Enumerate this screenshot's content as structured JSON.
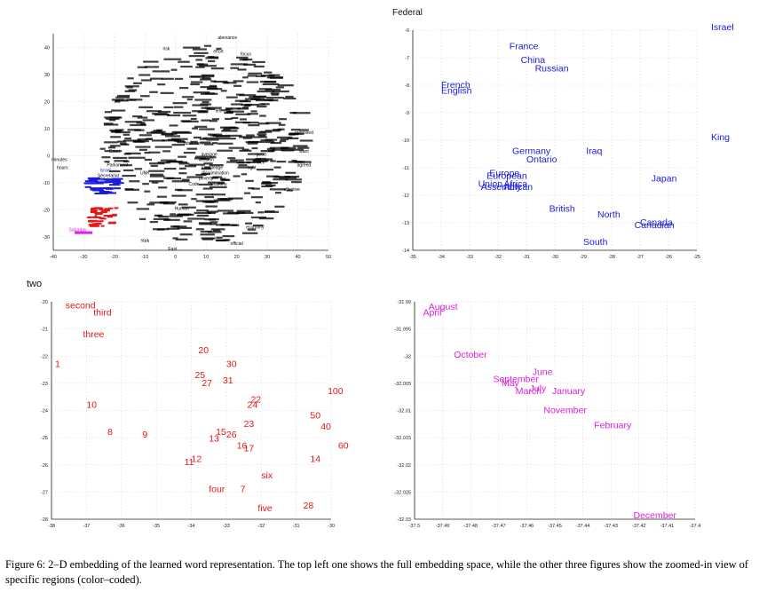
{
  "caption": "Figure 6: 2–D embedding of the learned word representation. The top left one shows the full embedding space, while the other three figures show the zoomed-in view of specific regions (color–coded).",
  "colors": {
    "black": "#000000",
    "blue": "#1a1adf",
    "red": "#e01818",
    "magenta": "#e020e0",
    "grid": "#d8d8d8"
  },
  "chart_data": [
    {
      "type": "scatter",
      "xlim": [
        -40,
        50
      ],
      "ylim": [
        -35,
        45
      ],
      "xticks": [
        -40,
        -30,
        -20,
        -10,
        0,
        10,
        20,
        30,
        40,
        50
      ],
      "yticks": [
        -30,
        -20,
        -10,
        0,
        10,
        20,
        30,
        40
      ],
      "grid": true,
      "words": [
        {
          "t": "abexance",
          "x": 17,
          "y": 43,
          "c": "black"
        },
        {
          "t": "risk",
          "x": -3,
          "y": 39,
          "c": "black"
        },
        {
          "t": "focus",
          "x": 23,
          "y": 37,
          "c": "black"
        },
        {
          "t": "effort",
          "x": 14,
          "y": 38,
          "c": "black"
        },
        {
          "t": "proposed",
          "x": 42,
          "y": 8,
          "c": "black"
        },
        {
          "t": "want",
          "x": 42,
          "y": 1,
          "c": "black"
        },
        {
          "t": "agreed",
          "x": 42,
          "y": -4,
          "c": "black"
        },
        {
          "t": "left",
          "x": 14,
          "y": 16,
          "c": "black"
        },
        {
          "t": "average",
          "x": 11,
          "y": 0,
          "c": "black"
        },
        {
          "t": "location",
          "x": 10,
          "y": -2,
          "c": "black"
        },
        {
          "t": "knowledge",
          "x": 12,
          "y": -5,
          "c": "black"
        },
        {
          "t": "discrimination",
          "x": 13,
          "y": -7,
          "c": "black"
        },
        {
          "t": "poverty",
          "x": 10,
          "y": -9,
          "c": "black"
        },
        {
          "t": "table crew",
          "x": 6,
          "y": 4,
          "c": "black"
        },
        {
          "t": "Parliament",
          "x": -19,
          "y": -4,
          "c": "black"
        },
        {
          "t": "Court",
          "x": -20,
          "y": 1,
          "c": "black"
        },
        {
          "t": "UNK",
          "x": -10,
          "y": -7,
          "c": "black"
        },
        {
          "t": "Code",
          "x": 6,
          "y": -11,
          "c": "black"
        },
        {
          "t": "relations",
          "x": 14,
          "y": -11,
          "c": "black"
        },
        {
          "t": "minutes",
          "x": -38,
          "y": -2,
          "c": "black"
        },
        {
          "t": "hours",
          "x": -37,
          "y": -5,
          "c": "black"
        },
        {
          "t": "effective",
          "x": 38,
          "y": -13,
          "c": "black"
        },
        {
          "t": "Human",
          "x": 2,
          "y": -20,
          "c": "black"
        },
        {
          "t": "York",
          "x": -10,
          "y": -32,
          "c": "black"
        },
        {
          "t": "East",
          "x": -1,
          "y": -35,
          "c": "black"
        },
        {
          "t": "official",
          "x": 20,
          "y": -33,
          "c": "black"
        },
        {
          "t": "economy",
          "x": 26,
          "y": -27,
          "c": "black"
        },
        {
          "t": "good",
          "x": 28,
          "y": 0,
          "c": "black"
        },
        {
          "t": "free",
          "x": 28,
          "y": -3,
          "c": "black"
        },
        {
          "t": "light",
          "x": 25,
          "y": -5,
          "c": "black"
        },
        {
          "t": "Kingdom",
          "x": -26,
          "y": -10,
          "c": "blue"
        },
        {
          "t": "Israel",
          "x": -23,
          "y": -6,
          "c": "blue"
        },
        {
          "t": "Secretariat",
          "x": -22,
          "y": -8,
          "c": "black"
        },
        {
          "t": "Saturday",
          "x": -32,
          "y": -28,
          "c": "magenta"
        }
      ],
      "cluster_note": "dense overlapping word cloud"
    },
    {
      "type": "scatter",
      "xlim": [
        -35,
        -25
      ],
      "ylim": [
        -14,
        -6
      ],
      "xticks": [
        -35,
        -34,
        -33,
        -32,
        -31,
        -30,
        -29,
        -28,
        -27,
        -26,
        -25
      ],
      "yticks": [
        -6,
        -7,
        -8,
        -9,
        -10,
        -11,
        -12,
        -13,
        -14
      ],
      "ylabel_top": "Federal",
      "grid": true,
      "words": [
        {
          "t": "France",
          "x": -31.6,
          "y": -6.7
        },
        {
          "t": "China",
          "x": -31.2,
          "y": -7.2
        },
        {
          "t": "Russian",
          "x": -30.7,
          "y": -7.5
        },
        {
          "t": "French",
          "x": -34.0,
          "y": -8.1
        },
        {
          "t": "English",
          "x": -34.0,
          "y": -8.3
        },
        {
          "t": "Israel",
          "x": -24.5,
          "y": -6.0
        },
        {
          "t": "King",
          "x": -24.5,
          "y": -10.0
        },
        {
          "t": "Germany",
          "x": -31.5,
          "y": -10.5
        },
        {
          "t": "Ontario",
          "x": -31.0,
          "y": -10.8
        },
        {
          "t": "Iraq",
          "x": -28.9,
          "y": -10.5
        },
        {
          "t": "Europe",
          "x": -32.3,
          "y": -11.3
        },
        {
          "t": "European",
          "x": -32.4,
          "y": -11.4
        },
        {
          "t": "Union",
          "x": -32.7,
          "y": -11.7
        },
        {
          "t": "Africa",
          "x": -31.8,
          "y": -11.7
        },
        {
          "t": "Assembly",
          "x": -32.6,
          "y": -11.8
        },
        {
          "t": "African",
          "x": -31.8,
          "y": -11.8
        },
        {
          "t": "Japan",
          "x": -26.6,
          "y": -11.5
        },
        {
          "t": "British",
          "x": -30.2,
          "y": -12.6
        },
        {
          "t": "North",
          "x": -28.5,
          "y": -12.8
        },
        {
          "t": "Canada",
          "x": -27.0,
          "y": -13.1
        },
        {
          "t": "Canadian",
          "x": -27.2,
          "y": -13.2
        },
        {
          "t": "South",
          "x": -29.0,
          "y": -13.8
        }
      ]
    },
    {
      "type": "scatter",
      "xlim": [
        -38,
        -30
      ],
      "ylim": [
        -28,
        -20
      ],
      "xticks": [
        -38,
        -37,
        -36,
        -35,
        -34,
        -33,
        -32,
        -31,
        -30
      ],
      "yticks": [
        -20,
        -21,
        -22,
        -23,
        -24,
        -25,
        -26,
        -27,
        -28
      ],
      "ylabel_top": "two",
      "grid": true,
      "words": [
        {
          "t": "second",
          "x": -37.6,
          "y": -20.25
        },
        {
          "t": "third",
          "x": -36.8,
          "y": -20.5
        },
        {
          "t": "three",
          "x": -37.1,
          "y": -21.3
        },
        {
          "t": "1",
          "x": -37.9,
          "y": -22.4
        },
        {
          "t": "20",
          "x": -33.8,
          "y": -21.9
        },
        {
          "t": "30",
          "x": -33.0,
          "y": -22.4
        },
        {
          "t": "25",
          "x": -33.9,
          "y": -22.8
        },
        {
          "t": "27",
          "x": -33.7,
          "y": -23.1
        },
        {
          "t": "31",
          "x": -33.1,
          "y": -23.0
        },
        {
          "t": "100",
          "x": -30.1,
          "y": -23.4
        },
        {
          "t": "22",
          "x": -32.3,
          "y": -23.7
        },
        {
          "t": "24",
          "x": -32.4,
          "y": -23.9
        },
        {
          "t": "10",
          "x": -37.0,
          "y": -23.9
        },
        {
          "t": "50",
          "x": -30.6,
          "y": -24.3
        },
        {
          "t": "23",
          "x": -32.5,
          "y": -24.6
        },
        {
          "t": "40",
          "x": -30.3,
          "y": -24.7
        },
        {
          "t": "8",
          "x": -36.4,
          "y": -24.9
        },
        {
          "t": "9",
          "x": -35.4,
          "y": -25.0
        },
        {
          "t": "15",
          "x": -33.3,
          "y": -24.9
        },
        {
          "t": "26",
          "x": -33.0,
          "y": -25.0
        },
        {
          "t": "13",
          "x": -33.5,
          "y": -25.15
        },
        {
          "t": "16",
          "x": -32.7,
          "y": -25.4
        },
        {
          "t": "17",
          "x": -32.5,
          "y": -25.5
        },
        {
          "t": "60",
          "x": -29.8,
          "y": -25.4
        },
        {
          "t": "14",
          "x": -30.6,
          "y": -25.9
        },
        {
          "t": "12",
          "x": -34.0,
          "y": -25.9
        },
        {
          "t": "11",
          "x": -34.2,
          "y": -26.0
        },
        {
          "t": "six",
          "x": -32.0,
          "y": -26.5
        },
        {
          "t": "four",
          "x": -33.5,
          "y": -27.0
        },
        {
          "t": "7",
          "x": -32.6,
          "y": -27.0
        },
        {
          "t": "five",
          "x": -32.1,
          "y": -27.7
        },
        {
          "t": "28",
          "x": -30.8,
          "y": -27.6
        }
      ]
    },
    {
      "type": "scatter",
      "xlim": [
        -37.5,
        -37.4
      ],
      "ylim": [
        -32.03,
        -31.99
      ],
      "xticks": [
        -37.5,
        -37.49,
        -37.48,
        -37.47,
        -37.46,
        -37.45,
        -37.44,
        -37.43,
        -37.42,
        -37.41,
        -37.4
      ],
      "yticks": [
        -31.99,
        -31.995,
        -32,
        -32.005,
        -32.01,
        -32.015,
        -32.02,
        -32.025,
        -32.03
      ],
      "grid": true,
      "words": [
        {
          "t": "August",
          "x": -37.495,
          "y": -31.9915
        },
        {
          "t": "April",
          "x": -37.497,
          "y": -31.9925
        },
        {
          "t": "October",
          "x": -37.486,
          "y": -32.0003
        },
        {
          "t": "June",
          "x": -37.458,
          "y": -32.0035
        },
        {
          "t": "September",
          "x": -37.472,
          "y": -32.0048
        },
        {
          "t": "May",
          "x": -37.469,
          "y": -32.0055
        },
        {
          "t": "July",
          "x": -37.459,
          "y": -32.0065
        },
        {
          "t": "March",
          "x": -37.464,
          "y": -32.007
        },
        {
          "t": "January",
          "x": -37.451,
          "y": -32.007
        },
        {
          "t": "November",
          "x": -37.454,
          "y": -32.0105
        },
        {
          "t": "February",
          "x": -37.436,
          "y": -32.0133
        },
        {
          "t": "December",
          "x": -37.422,
          "y": -32.0298
        }
      ]
    }
  ]
}
